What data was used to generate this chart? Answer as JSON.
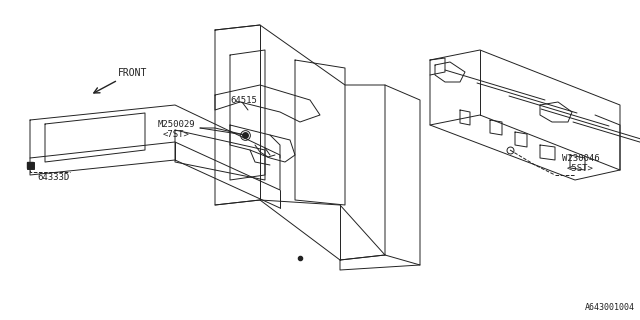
{
  "title": "",
  "bg_color": "#ffffff",
  "diagram_id": "A643001004",
  "labels": {
    "front": "FRONT",
    "part1": "M250029",
    "part1_sub": "<7ST>",
    "part2": "64515",
    "part3": "64333D",
    "part4": "W230046",
    "part4_sub": "<5ST>"
  },
  "line_color": "#222222",
  "line_width": 0.7,
  "font_size": 6.5
}
